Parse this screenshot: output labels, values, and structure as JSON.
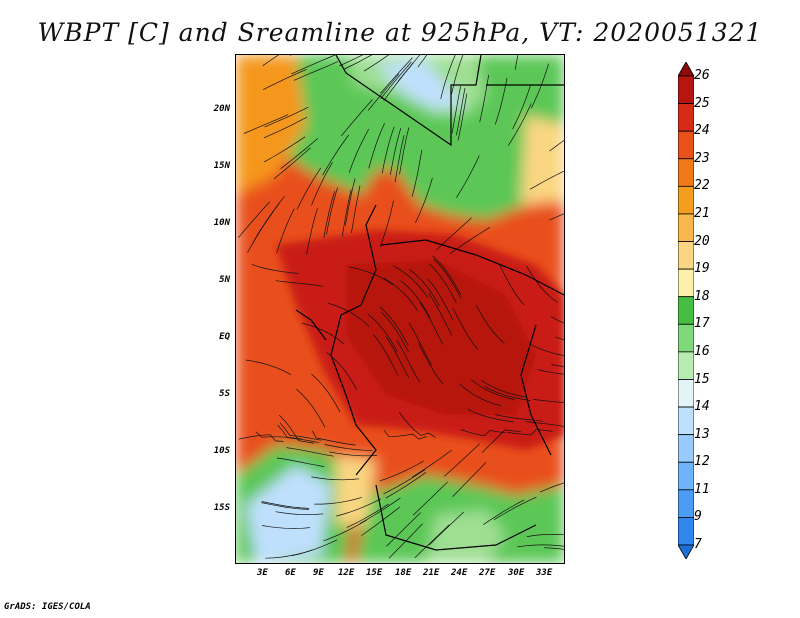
{
  "title": "WBPT [C] and Sreamline at 925hPa, VT: 2020051321",
  "latitude_labels": [
    "20N",
    "15N",
    "10N",
    "5N",
    "EQ",
    "5S",
    "10S",
    "15S"
  ],
  "longitude_labels": [
    "3E",
    "6E",
    "9E",
    "12E",
    "15E",
    "18E",
    "21E",
    "24E",
    "27E",
    "30E",
    "33E"
  ],
  "colorbar": {
    "levels": [
      "7",
      "9",
      "11",
      "12",
      "13",
      "14",
      "15",
      "16",
      "17",
      "18",
      "19",
      "20",
      "21",
      "22",
      "23",
      "24",
      "25",
      "26"
    ],
    "colors": [
      "#1e6fd8",
      "#2f86ec",
      "#4a9cf5",
      "#6eb4fa",
      "#98cbfc",
      "#bfe0fd",
      "#e2f4f6",
      "#b7ecb0",
      "#7ed97a",
      "#46bd43",
      "#fdf0a8",
      "#fbd682",
      "#f9b84d",
      "#f59d1f",
      "#f07a17",
      "#e9501a",
      "#d62b17",
      "#b7150f",
      "#8f0b0a"
    ]
  },
  "credit": "GrADS: IGES/COLA",
  "colors": {
    "hot": "#c91d12",
    "warm": "#e9501a",
    "orange": "#f5971c",
    "yellow": "#fbd682",
    "green": "#5cc756",
    "lightgreen": "#9fdf93",
    "paleblue": "#bfe0fd"
  }
}
